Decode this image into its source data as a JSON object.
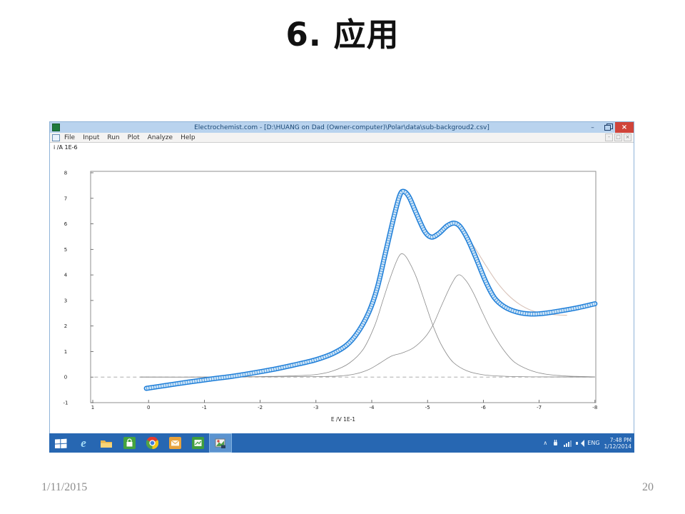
{
  "slide": {
    "title": "6. 应用",
    "footer_date": "1/11/2015",
    "footer_page": "20"
  },
  "window": {
    "title": "Electrochemist.com - [D:\\HUANG on Dad (Owner-computer)\\Polar\\data\\sub-backgroud2.csv]",
    "menu": [
      "File",
      "Input",
      "Run",
      "Plot",
      "Analyze",
      "Help"
    ],
    "controls": {
      "minimize": "–",
      "close": "×"
    },
    "mdi_controls": [
      "-",
      "□",
      "×"
    ]
  },
  "chart_data": {
    "type": "line",
    "title": "",
    "xlabel": "E /V  1E-1",
    "ylabel": "i /A  1E-6",
    "xlim": [
      1,
      -8
    ],
    "ylim": [
      -1,
      8
    ],
    "x_ticks": [
      1,
      0,
      -1,
      -2,
      -3,
      -4,
      -5,
      -6,
      -7,
      -8
    ],
    "y_ticks": [
      8,
      7,
      6,
      5,
      4,
      3,
      2,
      1,
      0,
      -1
    ],
    "grid": false,
    "legend": false,
    "series": [
      {
        "name": "zero-baseline-dashed",
        "style": "dashed",
        "color": "#a0a0a0",
        "points": [
          [
            0.97,
            0
          ],
          [
            -8.0,
            0
          ]
        ]
      },
      {
        "name": "fit-rise-left",
        "style": "thin",
        "color": "#a8a8a8",
        "points": [
          [
            -1.4,
            0.0
          ],
          [
            -1.9,
            0.13
          ],
          [
            -2.4,
            0.3
          ],
          [
            -2.9,
            0.55
          ],
          [
            -3.2,
            0.75
          ],
          [
            -3.45,
            1.0
          ],
          [
            -3.65,
            1.42
          ]
        ]
      },
      {
        "name": "deconvoluted-peak-1",
        "style": "thin",
        "color": "#8a8a8a",
        "points": [
          [
            0.15,
            0.0
          ],
          [
            -1.0,
            0.0
          ],
          [
            -2.0,
            0.02
          ],
          [
            -2.6,
            0.05
          ],
          [
            -3.0,
            0.1
          ],
          [
            -3.3,
            0.24
          ],
          [
            -3.6,
            0.55
          ],
          [
            -3.85,
            1.1
          ],
          [
            -4.05,
            2.0
          ],
          [
            -4.2,
            3.0
          ],
          [
            -4.35,
            4.0
          ],
          [
            -4.48,
            4.7
          ],
          [
            -4.56,
            4.82
          ],
          [
            -4.66,
            4.55
          ],
          [
            -4.8,
            3.9
          ],
          [
            -4.95,
            2.95
          ],
          [
            -5.1,
            2.0
          ],
          [
            -5.25,
            1.25
          ],
          [
            -5.45,
            0.6
          ],
          [
            -5.7,
            0.25
          ],
          [
            -6.0,
            0.09
          ],
          [
            -6.4,
            0.03
          ],
          [
            -7.0,
            0.01
          ],
          [
            -8.0,
            0.0
          ]
        ]
      },
      {
        "name": "deconvoluted-peak-2",
        "style": "thin",
        "color": "#8a8a8a",
        "points": [
          [
            0.15,
            0.0
          ],
          [
            -1.0,
            0.0
          ],
          [
            -2.0,
            0.01
          ],
          [
            -3.0,
            0.02
          ],
          [
            -3.4,
            0.04
          ],
          [
            -3.7,
            0.12
          ],
          [
            -3.95,
            0.3
          ],
          [
            -4.15,
            0.55
          ],
          [
            -4.35,
            0.82
          ],
          [
            -4.55,
            0.95
          ],
          [
            -4.75,
            1.15
          ],
          [
            -4.95,
            1.55
          ],
          [
            -5.1,
            2.05
          ],
          [
            -5.25,
            2.8
          ],
          [
            -5.42,
            3.6
          ],
          [
            -5.55,
            4.0
          ],
          [
            -5.68,
            3.8
          ],
          [
            -5.82,
            3.3
          ],
          [
            -5.98,
            2.55
          ],
          [
            -6.15,
            1.8
          ],
          [
            -6.35,
            1.1
          ],
          [
            -6.55,
            0.6
          ],
          [
            -6.8,
            0.3
          ],
          [
            -7.1,
            0.12
          ],
          [
            -7.5,
            0.04
          ],
          [
            -8.0,
            0.01
          ]
        ]
      },
      {
        "name": "fit-sum-right",
        "style": "faint",
        "color": "#d8c2b8",
        "points": [
          [
            -5.5,
            6.0
          ],
          [
            -5.65,
            5.7
          ],
          [
            -5.85,
            5.05
          ],
          [
            -6.05,
            4.35
          ],
          [
            -6.25,
            3.7
          ],
          [
            -6.45,
            3.2
          ],
          [
            -6.65,
            2.85
          ],
          [
            -6.85,
            2.62
          ],
          [
            -7.05,
            2.5
          ],
          [
            -7.3,
            2.44
          ],
          [
            -7.5,
            2.42
          ]
        ]
      },
      {
        "name": "measured-voltammogram",
        "style": "band",
        "color": "#1e7ed8",
        "points": [
          [
            0.04,
            -0.44
          ],
          [
            -0.3,
            -0.33
          ],
          [
            -0.7,
            -0.2
          ],
          [
            -1.1,
            -0.08
          ],
          [
            -1.5,
            0.03
          ],
          [
            -1.9,
            0.17
          ],
          [
            -2.3,
            0.33
          ],
          [
            -2.7,
            0.52
          ],
          [
            -3.0,
            0.68
          ],
          [
            -3.3,
            0.92
          ],
          [
            -3.55,
            1.25
          ],
          [
            -3.75,
            1.75
          ],
          [
            -3.95,
            2.55
          ],
          [
            -4.1,
            3.5
          ],
          [
            -4.25,
            4.9
          ],
          [
            -4.4,
            6.3
          ],
          [
            -4.5,
            7.1
          ],
          [
            -4.57,
            7.27
          ],
          [
            -4.67,
            7.05
          ],
          [
            -4.8,
            6.4
          ],
          [
            -4.95,
            5.7
          ],
          [
            -5.07,
            5.48
          ],
          [
            -5.2,
            5.62
          ],
          [
            -5.35,
            5.92
          ],
          [
            -5.47,
            6.03
          ],
          [
            -5.58,
            5.9
          ],
          [
            -5.72,
            5.4
          ],
          [
            -5.88,
            4.6
          ],
          [
            -6.05,
            3.7
          ],
          [
            -6.2,
            3.1
          ],
          [
            -6.38,
            2.75
          ],
          [
            -6.6,
            2.55
          ],
          [
            -6.85,
            2.47
          ],
          [
            -7.1,
            2.5
          ],
          [
            -7.4,
            2.6
          ],
          [
            -7.7,
            2.72
          ],
          [
            -8.0,
            2.87
          ]
        ]
      }
    ]
  },
  "taskbar": {
    "icons": [
      "start",
      "internet-explorer",
      "file-explorer",
      "windows-store",
      "chrome",
      "mail-orange-app",
      "green-app",
      "electrochemist-app-active"
    ],
    "tray": {
      "lang": "ENG",
      "time": "7:48 PM",
      "date": "1/12/2014"
    }
  }
}
